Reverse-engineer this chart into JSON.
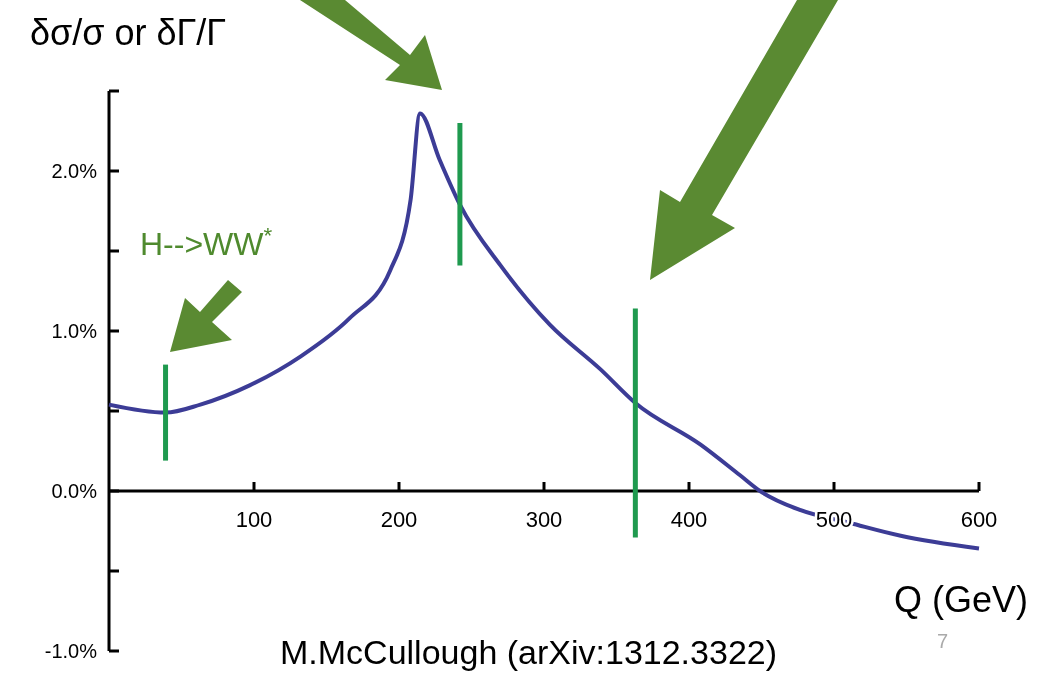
{
  "chart_data": {
    "type": "line",
    "ylabel": "δσ/σ  or  δΓ/Γ",
    "xlabel": "Q (GeV)",
    "xlim": [
      0,
      600
    ],
    "xticks": [
      100,
      200,
      300,
      400,
      500,
      600
    ],
    "ylim": [
      -1,
      2.5
    ],
    "yticks": [
      {
        "value": -1,
        "label": "-1.0%"
      },
      {
        "value": -0.5,
        "label": null
      },
      {
        "value": 0,
        "label": "0.0%"
      },
      {
        "value": 0.5,
        "label": null
      },
      {
        "value": 1,
        "label": "1.0%"
      },
      {
        "value": 1.5,
        "label": null
      },
      {
        "value": 2,
        "label": "2.0%"
      },
      {
        "value": 2.5,
        "label": null
      }
    ],
    "series": [
      {
        "color": "#3c3c96",
        "x": [
          0,
          39,
          63,
          97,
          132,
          166,
          194,
          208,
          214.5,
          228,
          242,
          270,
          304,
          339,
          363,
          408,
          435,
          449,
          477,
          511,
          546,
          600
        ],
        "values": [
          0.54,
          0.49,
          0.54,
          0.66,
          0.84,
          1.08,
          1.38,
          1.82,
          2.36,
          2.07,
          1.79,
          1.41,
          1.04,
          0.76,
          0.55,
          0.29,
          0.1,
          0,
          -0.12,
          -0.2,
          -0.28,
          -0.36
        ]
      },
      {
        "color": "#1f9a4f",
        "x": [
          39,
          39
        ],
        "values": [
          0.19,
          0.79
        ]
      },
      {
        "color": "#1f9a4f",
        "x": [
          242,
          242
        ],
        "values": [
          1.41,
          2.3
        ]
      },
      {
        "color": "#1f9a4f",
        "x": [
          363,
          363
        ],
        "values": [
          -0.29,
          1.14
        ]
      }
    ],
    "marker": "none",
    "line_style": "solid",
    "grid": false,
    "annotations": [
      "H-->WW$^{*}$",
      "M.McCullough (arXiv:1312.3322)",
      "7"
    ]
  }
}
